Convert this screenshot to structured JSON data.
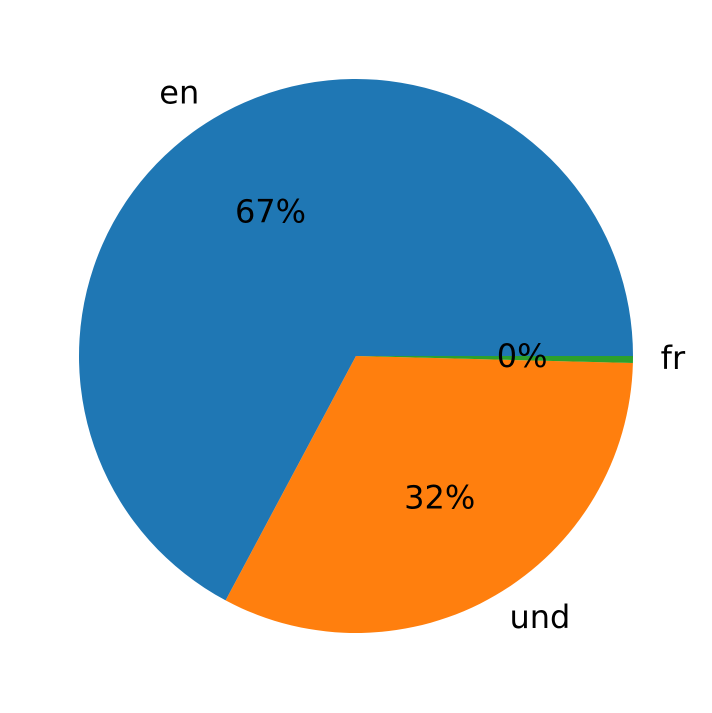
{
  "chart_data": {
    "type": "pie",
    "categories": [
      "en",
      "und",
      "fr"
    ],
    "values": [
      67.2,
      32.4,
      0.4
    ],
    "value_labels": [
      "67%",
      "32%",
      "0%"
    ],
    "colors": [
      "#1f77b4",
      "#ff7f0e",
      "#2ca02c"
    ]
  }
}
